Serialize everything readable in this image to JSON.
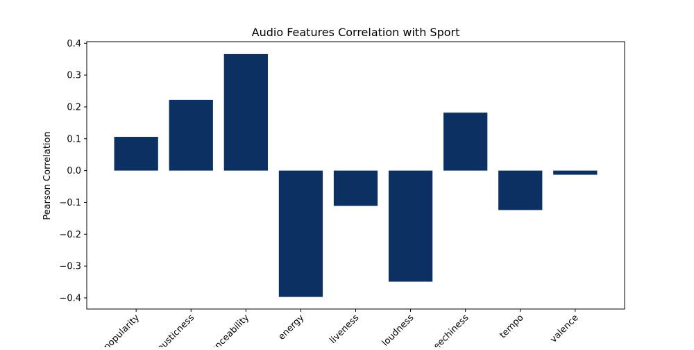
{
  "chart_data": {
    "type": "bar",
    "title": "Audio Features Correlation with Sport",
    "xlabel": "",
    "ylabel": "Pearson Correlation",
    "categories": [
      "popularity",
      "acousticness",
      "danceability",
      "energy",
      "liveness",
      "loudness",
      "speechiness",
      "tempo",
      "valence"
    ],
    "values": [
      0.106,
      0.222,
      0.366,
      -0.397,
      -0.111,
      -0.349,
      0.182,
      -0.124,
      -0.013
    ],
    "ylim": [
      -0.435,
      0.405
    ],
    "yticks": [
      -0.4,
      -0.3,
      -0.2,
      -0.1,
      0.0,
      0.1,
      0.2,
      0.3,
      0.4
    ],
    "ytick_labels": [
      "−0.4",
      "−0.3",
      "−0.2",
      "−0.1",
      "0.0",
      "0.1",
      "0.2",
      "0.3",
      "0.4"
    ],
    "bar_color": "#0d3063",
    "grid": false,
    "legend": "none"
  }
}
